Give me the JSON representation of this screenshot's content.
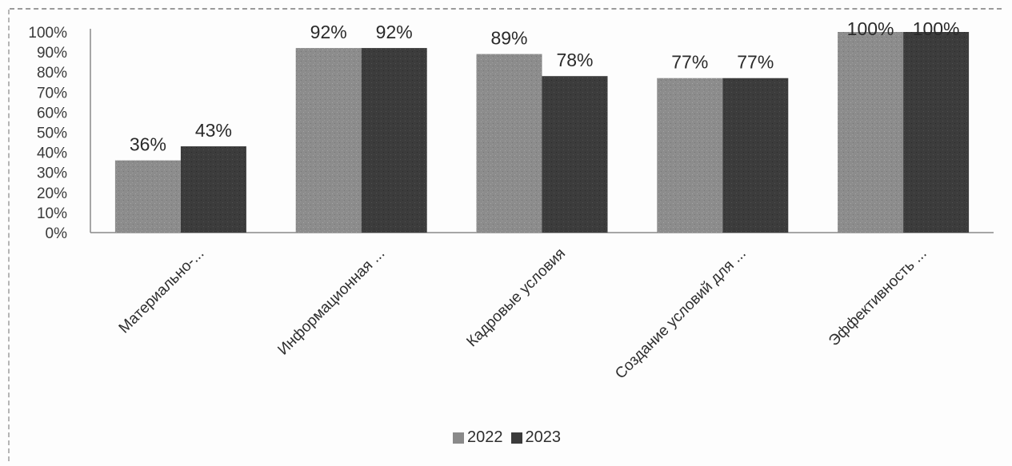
{
  "chart_data": {
    "type": "bar",
    "categories": [
      "Материально-...",
      "Информационная ...",
      "Кадровые условия",
      "Создание условий для ...",
      "Эффективность ..."
    ],
    "series": [
      {
        "name": "2022",
        "values": [
          36,
          92,
          89,
          77,
          100
        ],
        "color": "#8a8a8a"
      },
      {
        "name": "2023",
        "values": [
          43,
          92,
          78,
          77,
          100
        ],
        "color": "#3b3b3b"
      }
    ],
    "value_labels": {
      "2022": [
        "36%",
        "92%",
        "89%",
        "77%",
        "100%"
      ],
      "2023": [
        "43%",
        "92%",
        "78%",
        "77%",
        "100%"
      ]
    },
    "y_ticks": [
      "0%",
      "10%",
      "20%",
      "30%",
      "40%",
      "50%",
      "60%",
      "70%",
      "80%",
      "90%",
      "100%"
    ],
    "ylim": [
      0,
      100
    ],
    "grid": false,
    "legend_position": "bottom-center",
    "title": "",
    "xlabel": "",
    "ylabel": ""
  },
  "legend": {
    "items": [
      {
        "label": "2022",
        "color": "#8a8a8a"
      },
      {
        "label": "2023",
        "color": "#3b3b3b"
      }
    ]
  }
}
